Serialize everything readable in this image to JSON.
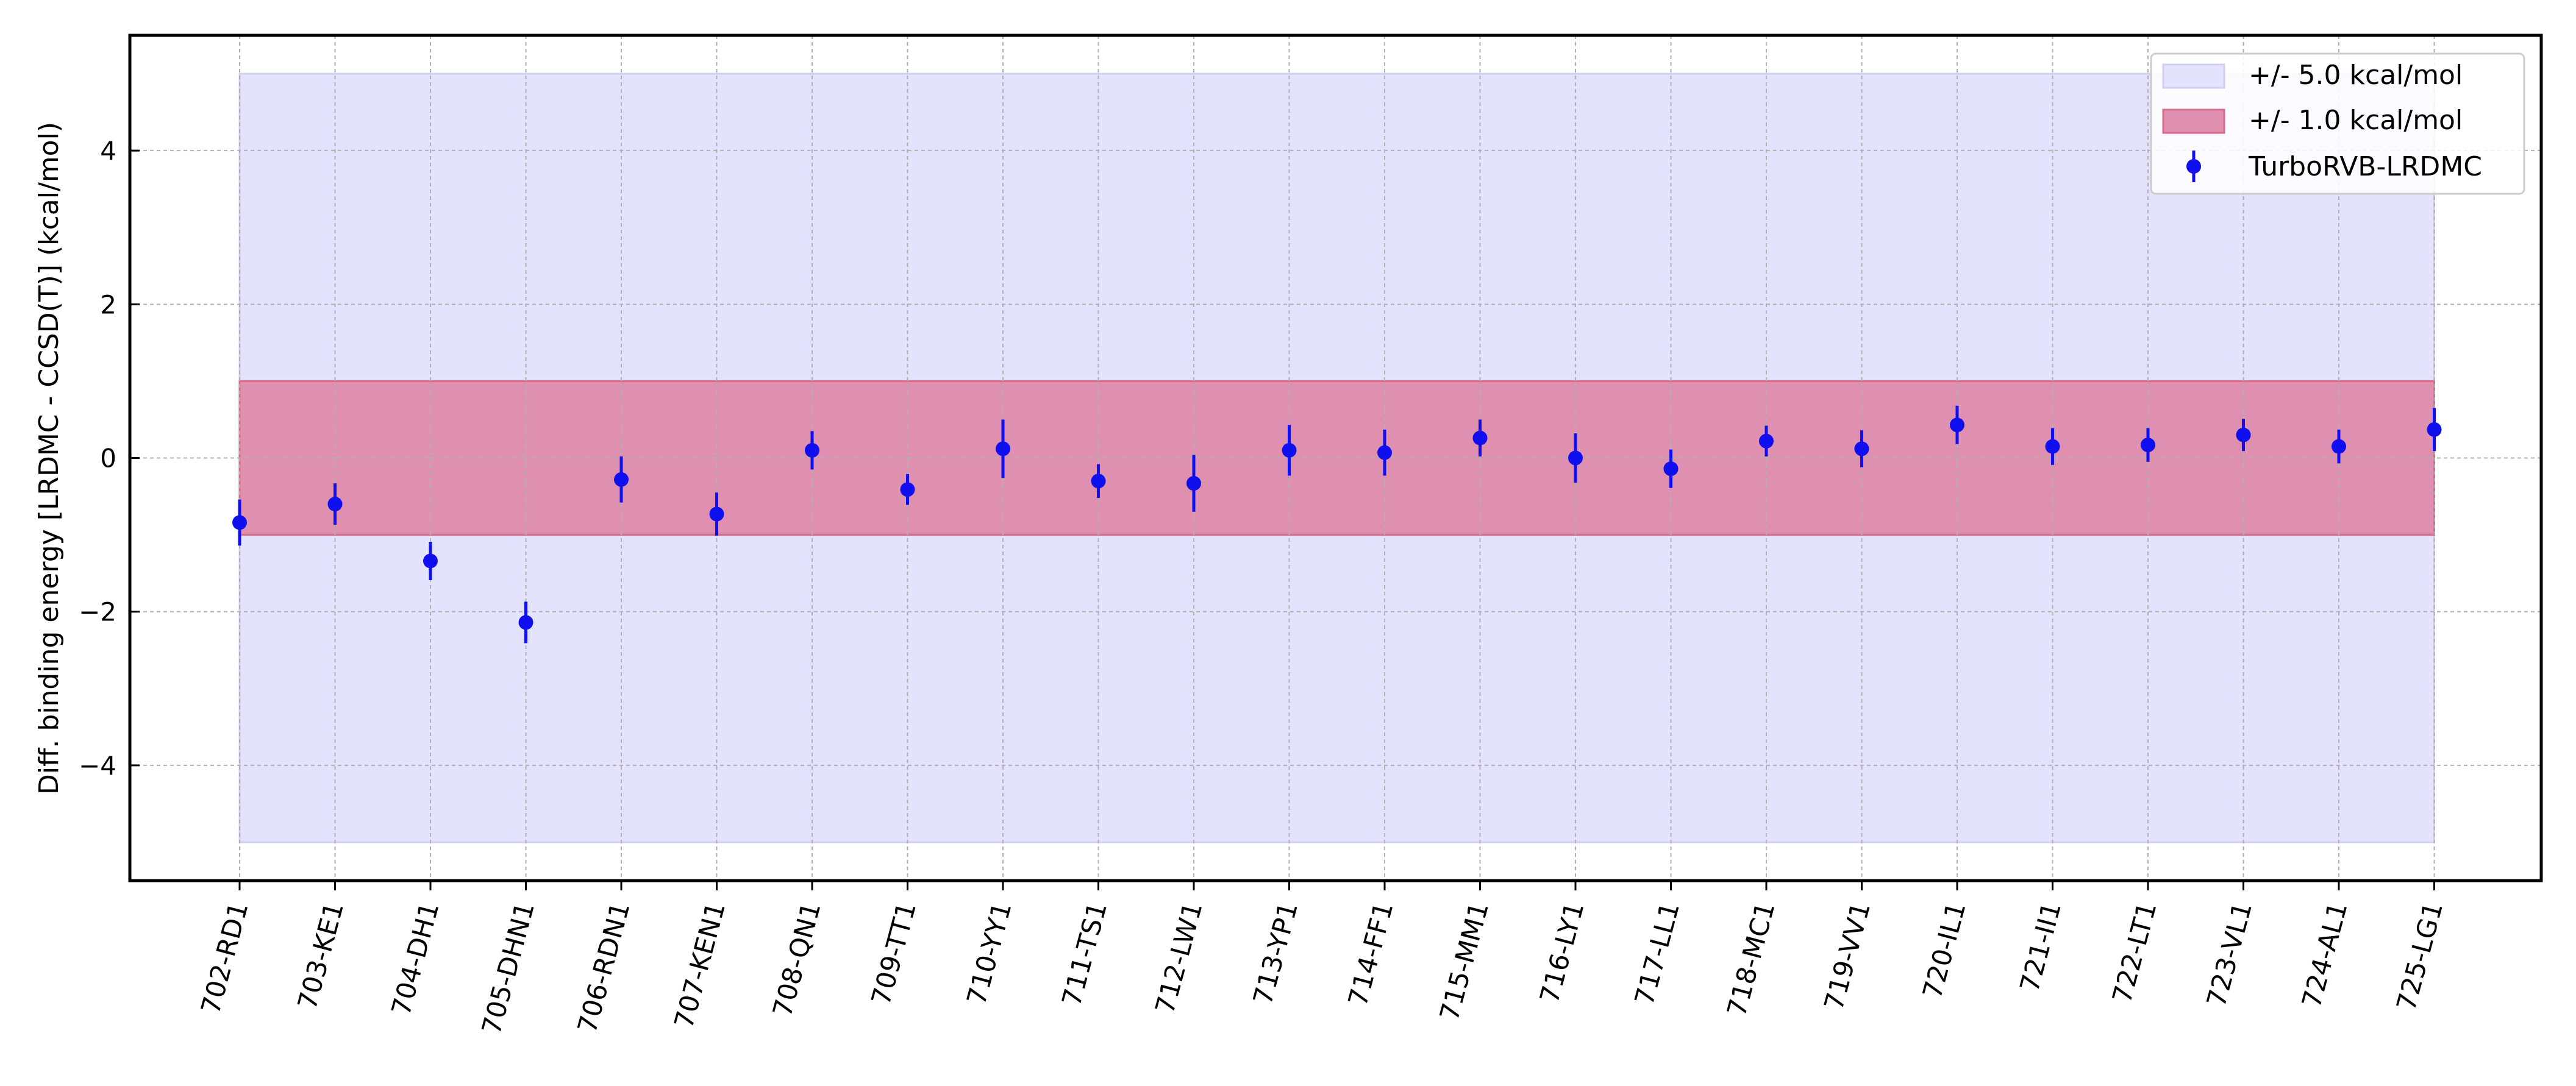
{
  "chart_data": {
    "type": "scatter",
    "ylabel": "Diff. binding energy [LRDMC - CCSD(T)] (kcal/mol)",
    "xlabel": "",
    "ylim": [
      -5.5,
      5.5
    ],
    "yticks": [
      -4,
      -2,
      0,
      2,
      4
    ],
    "grid": true,
    "legend_position": "top-right",
    "categories": [
      "702-RD1",
      "703-KE1",
      "704-DH1",
      "705-DHN1",
      "706-RDN1",
      "707-KEN1",
      "708-QN1",
      "709-TT1",
      "710-YY1",
      "711-TS1",
      "712-LW1",
      "713-YP1",
      "714-FF1",
      "715-MM1",
      "716-LY1",
      "717-LL1",
      "718-MC1",
      "719-VV1",
      "720-IL1",
      "721-II1",
      "722-LT1",
      "723-VL1",
      "724-AL1",
      "725-LG1"
    ],
    "bands": [
      {
        "name": "+/- 5.0 kcal/mol",
        "low": -5.0,
        "high": 5.0,
        "color": "#e3e3fd",
        "edge": "#cfcff5"
      },
      {
        "name": "+/- 1.0 kcal/mol",
        "low": -1.0,
        "high": 1.0,
        "color": "#df90b0",
        "edge": "#d96a8a"
      }
    ],
    "series": [
      {
        "name": "TurboRVB-LRDMC",
        "color": "#1010ee",
        "values": [
          -0.84,
          -0.6,
          -1.34,
          -2.14,
          -0.28,
          -0.73,
          0.1,
          -0.41,
          0.12,
          -0.3,
          -0.33,
          0.1,
          0.07,
          0.26,
          0.0,
          -0.14,
          0.22,
          0.12,
          0.43,
          0.15,
          0.17,
          0.3,
          0.15,
          0.37
        ],
        "errors": [
          0.3,
          0.27,
          0.25,
          0.27,
          0.3,
          0.28,
          0.25,
          0.2,
          0.38,
          0.22,
          0.37,
          0.33,
          0.3,
          0.24,
          0.32,
          0.25,
          0.2,
          0.24,
          0.25,
          0.24,
          0.22,
          0.21,
          0.22,
          0.28
        ]
      }
    ]
  }
}
